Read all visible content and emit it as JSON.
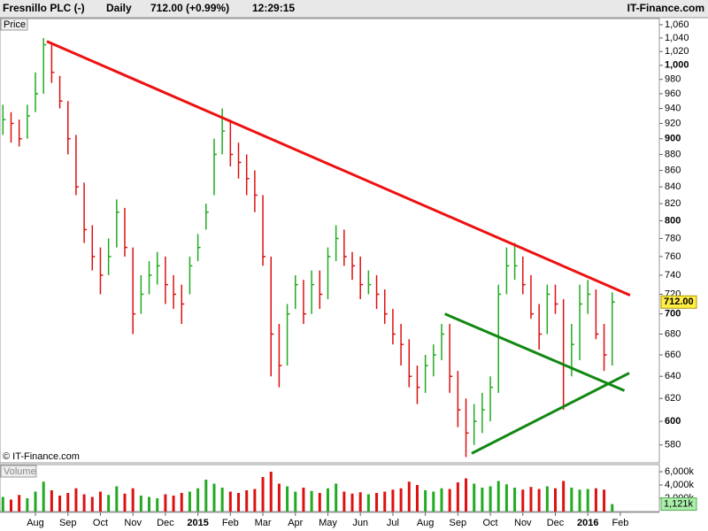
{
  "chart_data": {
    "type": "ohlc",
    "title": "Fresnillo PLC (-)",
    "interval": "Daily",
    "quote": "712.00 (+0.99%)",
    "time": "12:29:15",
    "source": "IT-Finance.com",
    "copyright": "© IT-Finance.com",
    "y_label": "Price",
    "volume_label": "Volume",
    "log_scale": true,
    "up_color": "#22aa22",
    "down_color": "#dd1111",
    "xlim": [
      -0.36,
      80.8
    ],
    "xticks": [
      {
        "value": 4,
        "label": "Aug"
      },
      {
        "value": 8,
        "label": "Sep"
      },
      {
        "value": 12,
        "label": "Oct"
      },
      {
        "value": 16,
        "label": "Nov"
      },
      {
        "value": 20,
        "label": "Dec"
      },
      {
        "value": 24,
        "label": "2015"
      },
      {
        "value": 28,
        "label": "Feb"
      },
      {
        "value": 32,
        "label": "Mar"
      },
      {
        "value": 36,
        "label": "Apr"
      },
      {
        "value": 40,
        "label": "May"
      },
      {
        "value": 44,
        "label": "Jun"
      },
      {
        "value": 48,
        "label": "Jul"
      },
      {
        "value": 52,
        "label": "Aug"
      },
      {
        "value": 56,
        "label": "Sep"
      },
      {
        "value": 60,
        "label": "Oct"
      },
      {
        "value": 64,
        "label": "Nov"
      },
      {
        "value": 68,
        "label": "Dec"
      },
      {
        "value": 72,
        "label": "2016"
      },
      {
        "value": 76,
        "label": "Feb"
      }
    ],
    "ylim": [
      566,
      1068
    ],
    "yticks": [
      580,
      600,
      620,
      640,
      660,
      680,
      700,
      720,
      740,
      760,
      780,
      800,
      820,
      840,
      860,
      880,
      900,
      920,
      940,
      960,
      980,
      {
        "value": 1000,
        "label": "1,000"
      },
      {
        "value": 1020,
        "label": "1,020"
      },
      {
        "value": 1040,
        "label": "1,040"
      },
      {
        "value": 1060,
        "label": "1,060"
      }
    ],
    "high": [
      945,
      935,
      925,
      945,
      990,
      1040,
      1030,
      985,
      950,
      905,
      845,
      795,
      770,
      780,
      825,
      815,
      770,
      740,
      755,
      765,
      760,
      740,
      730,
      760,
      785,
      820,
      900,
      940,
      925,
      895,
      880,
      860,
      830,
      760,
      690,
      710,
      740,
      735,
      745,
      745,
      770,
      795,
      790,
      765,
      760,
      745,
      740,
      725,
      705,
      690,
      675,
      650,
      660,
      670,
      690,
      690,
      645,
      620,
      615,
      625,
      640,
      730,
      770,
      775,
      760,
      740,
      710,
      730,
      730,
      715,
      690,
      730,
      735,
      725,
      690,
      722
    ],
    "low": [
      905,
      895,
      890,
      900,
      935,
      960,
      975,
      940,
      880,
      830,
      775,
      745,
      720,
      740,
      770,
      760,
      680,
      700,
      720,
      730,
      710,
      705,
      690,
      720,
      755,
      790,
      830,
      880,
      865,
      850,
      830,
      810,
      750,
      640,
      630,
      650,
      705,
      690,
      700,
      705,
      715,
      755,
      750,
      735,
      715,
      720,
      705,
      690,
      670,
      650,
      630,
      615,
      625,
      640,
      655,
      625,
      595,
      570,
      580,
      590,
      600,
      625,
      720,
      735,
      720,
      695,
      665,
      680,
      700,
      610,
      640,
      655,
      700,
      675,
      645,
      650
    ],
    "close": [
      925,
      920,
      900,
      930,
      960,
      1030,
      990,
      950,
      900,
      840,
      790,
      760,
      740,
      760,
      810,
      770,
      700,
      720,
      740,
      750,
      730,
      720,
      710,
      750,
      770,
      810,
      880,
      910,
      880,
      870,
      850,
      830,
      760,
      680,
      650,
      700,
      730,
      700,
      730,
      720,
      760,
      780,
      760,
      750,
      730,
      730,
      720,
      700,
      680,
      670,
      640,
      630,
      650,
      660,
      680,
      640,
      610,
      590,
      600,
      610,
      630,
      720,
      750,
      750,
      730,
      700,
      680,
      720,
      710,
      650,
      670,
      710,
      720,
      680,
      660,
      712
    ],
    "last_label": "712.00",
    "volume": {
      "values": [
        2200,
        1800,
        2500,
        2000,
        3000,
        4500,
        3200,
        2400,
        2800,
        3500,
        2600,
        2200,
        3000,
        2500,
        3800,
        2700,
        3500,
        2400,
        2200,
        2000,
        2600,
        2400,
        2800,
        3000,
        3500,
        4800,
        4200,
        3600,
        3000,
        2800,
        3200,
        3400,
        5200,
        6000,
        4200,
        3800,
        3000,
        3600,
        3100,
        2800,
        3500,
        4200,
        3000,
        2700,
        2900,
        2600,
        2800,
        3000,
        3300,
        3500,
        4500,
        4000,
        3200,
        3000,
        3500,
        3400,
        4400,
        5000,
        4200,
        3600,
        3800,
        4600,
        4100,
        3600,
        3300,
        3700,
        3400,
        3800,
        3500,
        4600,
        3600,
        3300,
        3400,
        3500,
        3300,
        1121
      ],
      "ylim": [
        0,
        6800
      ],
      "yticks": [
        {
          "value": 6000,
          "label": "6,000k"
        },
        {
          "value": 4000,
          "label": "4,000k"
        },
        {
          "value": 2000,
          "label": "2,000k"
        }
      ],
      "last_label": "1,121k"
    },
    "trendlines": [
      {
        "color": "#ee1111",
        "x": [
          5.41,
          77.2
        ],
        "y": [
          1035,
          719
        ]
      },
      {
        "color": "#118811",
        "x": [
          54.4,
          76.5
        ],
        "y": [
          700,
          627
        ]
      },
      {
        "color": "#118811",
        "x": [
          57.7,
          77.1
        ],
        "y": [
          573,
          643
        ]
      }
    ]
  }
}
